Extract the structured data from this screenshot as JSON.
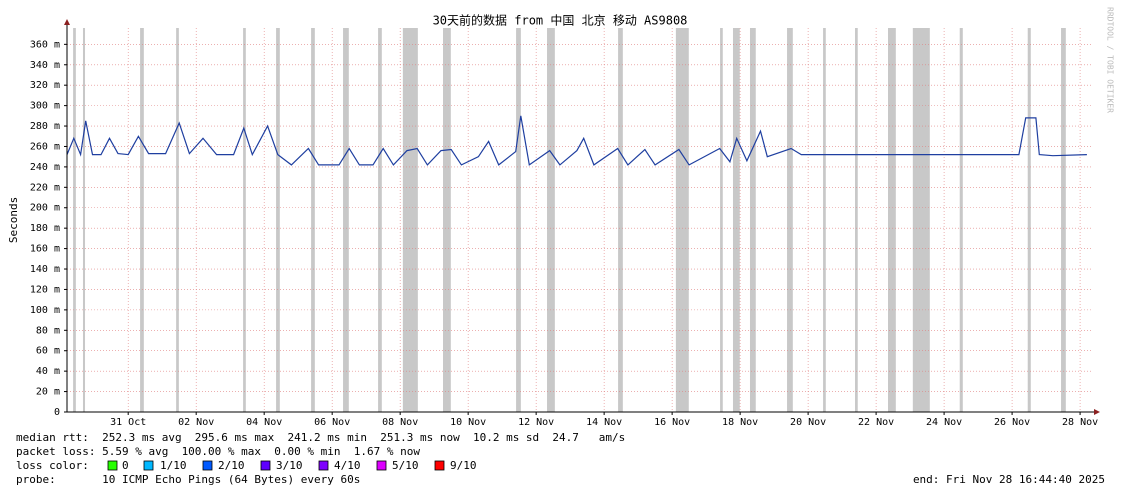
{
  "chart_data": {
    "type": "line",
    "title": "30天前的数据 from 中国 北京 移动 AS9808",
    "y_label": "Seconds",
    "watermark": "RRDTOOL / TOBI OETIKER",
    "color": "#1f3fa0",
    "gap_color": "#c8c8c8",
    "grid": true,
    "xlim": [
      0,
      30.18
    ],
    "ylim": [
      0,
      0.376
    ],
    "yticks": [
      0,
      {
        "value": 0.02,
        "label": "20 m"
      },
      {
        "value": 0.04,
        "label": "40 m"
      },
      {
        "value": 0.06,
        "label": "60 m"
      },
      {
        "value": 0.08,
        "label": "80 m"
      },
      {
        "value": 0.1,
        "label": "100 m"
      },
      {
        "value": 0.12,
        "label": "120 m"
      },
      {
        "value": 0.14,
        "label": "140 m"
      },
      {
        "value": 0.16,
        "label": "160 m"
      },
      {
        "value": 0.18,
        "label": "180 m"
      },
      {
        "value": 0.2,
        "label": "200 m"
      },
      {
        "value": 0.22,
        "label": "220 m"
      },
      {
        "value": 0.24,
        "label": "240 m"
      },
      {
        "value": 0.26,
        "label": "260 m"
      },
      {
        "value": 0.28,
        "label": "280 m"
      },
      {
        "value": 0.3,
        "label": "300 m"
      },
      {
        "value": 0.32,
        "label": "320 m"
      },
      {
        "value": 0.34,
        "label": "340 m"
      },
      {
        "value": 0.36,
        "label": "360 m"
      }
    ],
    "xticks": [
      {
        "value": 1.8,
        "label": "31 Oct"
      },
      {
        "value": 3.8,
        "label": "02 Nov"
      },
      {
        "value": 5.8,
        "label": "04 Nov"
      },
      {
        "value": 7.8,
        "label": "06 Nov"
      },
      {
        "value": 9.8,
        "label": "08 Nov"
      },
      {
        "value": 11.8,
        "label": "10 Nov"
      },
      {
        "value": 13.8,
        "label": "12 Nov"
      },
      {
        "value": 15.8,
        "label": "14 Nov"
      },
      {
        "value": 17.8,
        "label": "16 Nov"
      },
      {
        "value": 19.8,
        "label": "18 Nov"
      },
      {
        "value": 21.8,
        "label": "20 Nov"
      },
      {
        "value": 23.8,
        "label": "22 Nov"
      },
      {
        "value": 25.8,
        "label": "24 Nov"
      },
      {
        "value": 27.8,
        "label": "26 Nov"
      },
      {
        "value": 29.8,
        "label": "28 Nov"
      }
    ],
    "x": [
      0,
      0.2,
      0.4,
      0.55,
      0.75,
      1.0,
      1.25,
      1.5,
      1.8,
      2.1,
      2.4,
      2.9,
      3.3,
      3.6,
      4.0,
      4.4,
      4.9,
      5.2,
      5.45,
      5.9,
      6.2,
      6.6,
      7.1,
      7.4,
      8.0,
      8.3,
      8.6,
      9.0,
      9.3,
      9.6,
      10.0,
      10.3,
      10.6,
      11.0,
      11.3,
      11.6,
      12.1,
      12.4,
      12.7,
      13.2,
      13.35,
      13.6,
      14.2,
      14.5,
      15.0,
      15.2,
      15.5,
      16.2,
      16.5,
      17.0,
      17.3,
      18.0,
      18.3,
      19.2,
      19.5,
      19.7,
      20.0,
      20.4,
      20.6,
      21.3,
      21.6,
      23.0,
      24.0,
      25.0,
      26.0,
      27.0,
      28.0,
      28.2,
      28.5,
      28.6,
      29.0,
      30.0
    ],
    "values": [
      0.252,
      0.268,
      0.252,
      0.285,
      0.252,
      0.252,
      0.268,
      0.253,
      0.252,
      0.27,
      0.253,
      0.253,
      0.283,
      0.253,
      0.268,
      0.252,
      0.252,
      0.278,
      0.252,
      0.28,
      0.252,
      0.242,
      0.258,
      0.242,
      0.242,
      0.258,
      0.242,
      0.242,
      0.258,
      0.242,
      0.256,
      0.258,
      0.242,
      0.256,
      0.257,
      0.242,
      0.25,
      0.265,
      0.242,
      0.255,
      0.29,
      0.242,
      0.256,
      0.242,
      0.256,
      0.268,
      0.242,
      0.258,
      0.242,
      0.257,
      0.242,
      0.257,
      0.242,
      0.258,
      0.245,
      0.268,
      0.246,
      0.275,
      0.25,
      0.258,
      0.252,
      0.252,
      0.252,
      0.252,
      0.252,
      0.252,
      0.252,
      0.288,
      0.288,
      0.252,
      0.251,
      0.252
    ],
    "gaps": [
      [
        0.18,
        0.26
      ],
      [
        0.47,
        0.53
      ],
      [
        2.15,
        2.26
      ],
      [
        3.21,
        3.29
      ],
      [
        5.18,
        5.26
      ],
      [
        6.15,
        6.26
      ],
      [
        7.18,
        7.29
      ],
      [
        8.12,
        8.29
      ],
      [
        9.15,
        9.26
      ],
      [
        9.88,
        10.32
      ],
      [
        11.06,
        11.29
      ],
      [
        13.21,
        13.35
      ],
      [
        14.12,
        14.35
      ],
      [
        16.21,
        16.35
      ],
      [
        17.91,
        18.29
      ],
      [
        19.21,
        19.29
      ],
      [
        19.59,
        19.79
      ],
      [
        20.09,
        20.26
      ],
      [
        21.18,
        21.35
      ],
      [
        22.24,
        22.32
      ],
      [
        23.18,
        23.26
      ],
      [
        24.15,
        24.38
      ],
      [
        24.88,
        25.38
      ],
      [
        26.26,
        26.35
      ],
      [
        28.26,
        28.35
      ],
      [
        29.24,
        29.38
      ]
    ],
    "stats": {
      "median_rtt": "median rtt:  252.3 ms avg  295.6 ms max  241.2 ms min  251.3 ms now  10.2 ms sd  24.7   am/s",
      "packet_loss": "packet loss: 5.59 % avg  100.00 % max  0.00 % min  1.67 % now",
      "loss_color_label": "loss color:",
      "loss_colors": [
        {
          "label": "0",
          "color": "#26ff00"
        },
        {
          "label": "1/10",
          "color": "#00b8ff"
        },
        {
          "label": "2/10",
          "color": "#0059ff"
        },
        {
          "label": "3/10",
          "color": "#5e00ff"
        },
        {
          "label": "4/10",
          "color": "#7e00ff"
        },
        {
          "label": "5/10",
          "color": "#dd00ff"
        },
        {
          "label": "9/10",
          "color": "#ff0000"
        }
      ],
      "probe": "probe:       10 ICMP Echo Pings (64 Bytes) every 60s",
      "end": "end: Fri Nov 28 16:44:40 2025"
    }
  }
}
